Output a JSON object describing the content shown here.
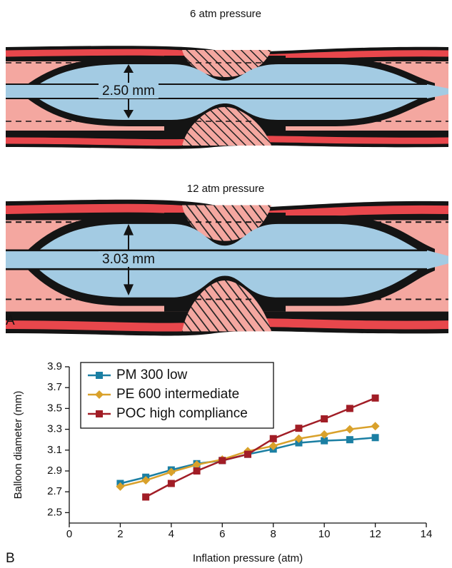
{
  "panel_a": {
    "label": "A",
    "views": [
      {
        "title": "6 atm pressure",
        "measurement": "2.50 mm"
      },
      {
        "title": "12 atm pressure",
        "measurement": "3.03 mm"
      }
    ]
  },
  "panel_b_label": "B",
  "chart_data": {
    "type": "line",
    "xlabel": "Inflation pressure (atm)",
    "ylabel": "Balloon diameter (mm)",
    "xlim": [
      0,
      14
    ],
    "xticks": [
      0,
      2,
      4,
      6,
      8,
      10,
      12,
      14
    ],
    "ylim": [
      2.4,
      3.9
    ],
    "yticks": [
      2.5,
      2.7,
      2.9,
      3.1,
      3.3,
      3.5,
      3.7,
      3.9
    ],
    "legend": "upper left",
    "series": [
      {
        "name": "PM 300 low",
        "color": "#1b7fa3",
        "marker": "square",
        "x": [
          2,
          3,
          4,
          5,
          6,
          7,
          8,
          9,
          10,
          11,
          12
        ],
        "values": [
          2.78,
          2.84,
          2.91,
          2.97,
          3.0,
          3.06,
          3.11,
          3.17,
          3.19,
          3.2,
          3.22
        ]
      },
      {
        "name": "PE 600 intermediate",
        "color": "#d9a12b",
        "marker": "diamond",
        "x": [
          2,
          3,
          4,
          5,
          6,
          7,
          8,
          9,
          10,
          11,
          12
        ],
        "values": [
          2.75,
          2.81,
          2.89,
          2.96,
          3.01,
          3.09,
          3.14,
          3.21,
          3.25,
          3.3,
          3.33
        ]
      },
      {
        "name": "POC high compliance",
        "color": "#a11d26",
        "marker": "square",
        "x": [
          3,
          4,
          5,
          6,
          7,
          8,
          9,
          10,
          11,
          12
        ],
        "values": [
          2.65,
          2.78,
          2.9,
          3.0,
          3.06,
          3.21,
          3.31,
          3.4,
          3.5,
          3.6
        ]
      }
    ]
  }
}
